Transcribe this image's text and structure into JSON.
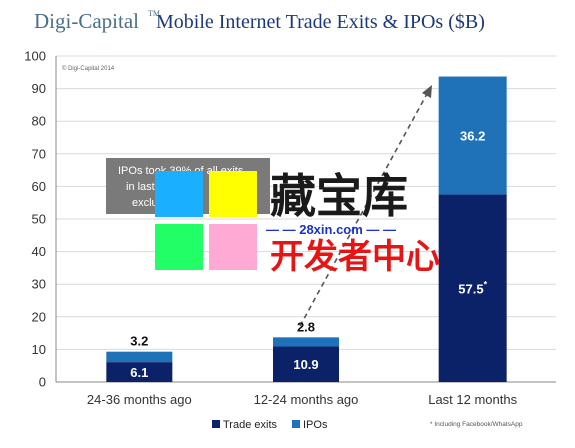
{
  "header": {
    "brand": "Digi-Capital",
    "trademark": "TM",
    "title": "Mobile Internet Trade Exits & IPOs ($B)"
  },
  "copyright": "© Digi-Capital 2014",
  "annotation": {
    "line1": "IPOs took 39% of all exits",
    "line2": "in last",
    "line3": "exclu"
  },
  "footnote": "* Including Facebook/WhatsApp",
  "watermark": {
    "title": "藏宝库",
    "url": "— — 28xin.com — —",
    "subtitle": "开发者中心",
    "tile_colors": [
      "#1ab0ff",
      "#ffff00",
      "#22ff66",
      "#ffaad4"
    ]
  },
  "chart_data": {
    "type": "bar",
    "stacked": true,
    "categories": [
      "24-36 months ago",
      "12-24 months ago",
      "Last 12 months"
    ],
    "series": [
      {
        "name": "Trade exits",
        "values": [
          6.1,
          10.9,
          57.5
        ],
        "color": "#0c2268"
      },
      {
        "name": "IPOs",
        "values": [
          3.2,
          2.8,
          36.2
        ],
        "color": "#1f72b8"
      }
    ],
    "value_labels": [
      [
        "6.1",
        "10.9",
        "57.5*"
      ],
      [
        "3.2",
        "2.8",
        "36.2"
      ]
    ],
    "ylim": [
      0,
      100
    ],
    "yticks": [
      0,
      10,
      20,
      30,
      40,
      50,
      60,
      70,
      80,
      90,
      100
    ],
    "grid": true,
    "legend_position": "bottom-center",
    "trend_arrow": true
  }
}
